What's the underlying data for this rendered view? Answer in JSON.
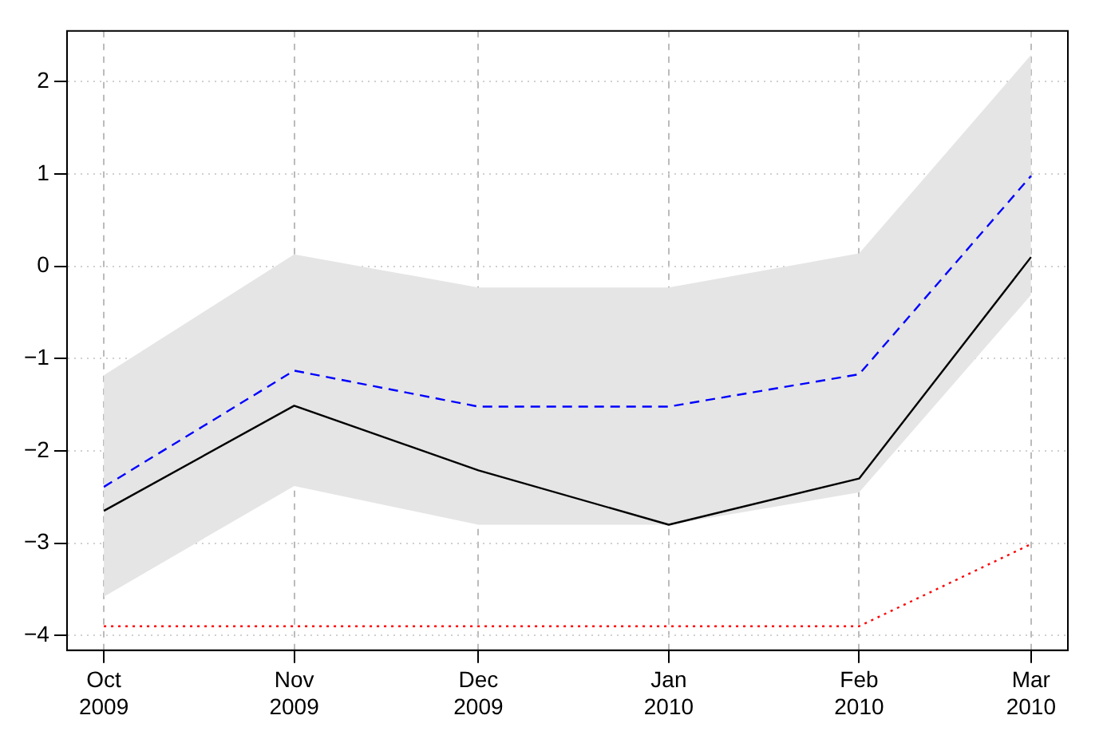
{
  "chart_data": {
    "type": "line",
    "x": [
      "2009-10",
      "2009-11",
      "2009-12",
      "2010-01",
      "2010-02",
      "2010-03"
    ],
    "xlim": [
      "2009-09-25",
      "2010-03-07"
    ],
    "xticks": [
      {
        "value": "2009-10",
        "label": "Oct 2009"
      },
      {
        "value": "2009-11",
        "label": "Nov 2009"
      },
      {
        "value": "2009-12",
        "label": "Dec 2009"
      },
      {
        "value": "2010-01",
        "label": "Jan 2010"
      },
      {
        "value": "2010-02",
        "label": "Feb 2010"
      },
      {
        "value": "2010-03",
        "label": "Mar 2010"
      }
    ],
    "ylim": [
      -4.16,
      2.55
    ],
    "yticks": [
      -4,
      -3,
      -2,
      -1,
      0,
      1,
      2
    ],
    "grid": true,
    "legend": false,
    "marker": "none",
    "series": [
      {
        "color": "#000000",
        "line_style": "solid",
        "values": [
          -2.65,
          -1.51,
          -2.21,
          -2.8,
          -2.3,
          0.1
        ],
        "lower": [
          -3.58,
          -2.38,
          -2.8,
          -2.8,
          -2.45,
          -0.31
        ],
        "upper": [
          -1.18,
          0.13,
          -0.23,
          -0.23,
          0.14,
          2.29
        ]
      },
      {
        "color": "#0000ff",
        "line_style": "dashed",
        "values": [
          -2.39,
          -1.13,
          -1.52,
          -1.52,
          -1.17,
          0.98
        ]
      },
      {
        "color": "#ff0000",
        "line_style": "dotted",
        "values": [
          -3.9,
          -3.9,
          -3.9,
          -3.9,
          -3.9,
          -3.01
        ]
      }
    ]
  }
}
